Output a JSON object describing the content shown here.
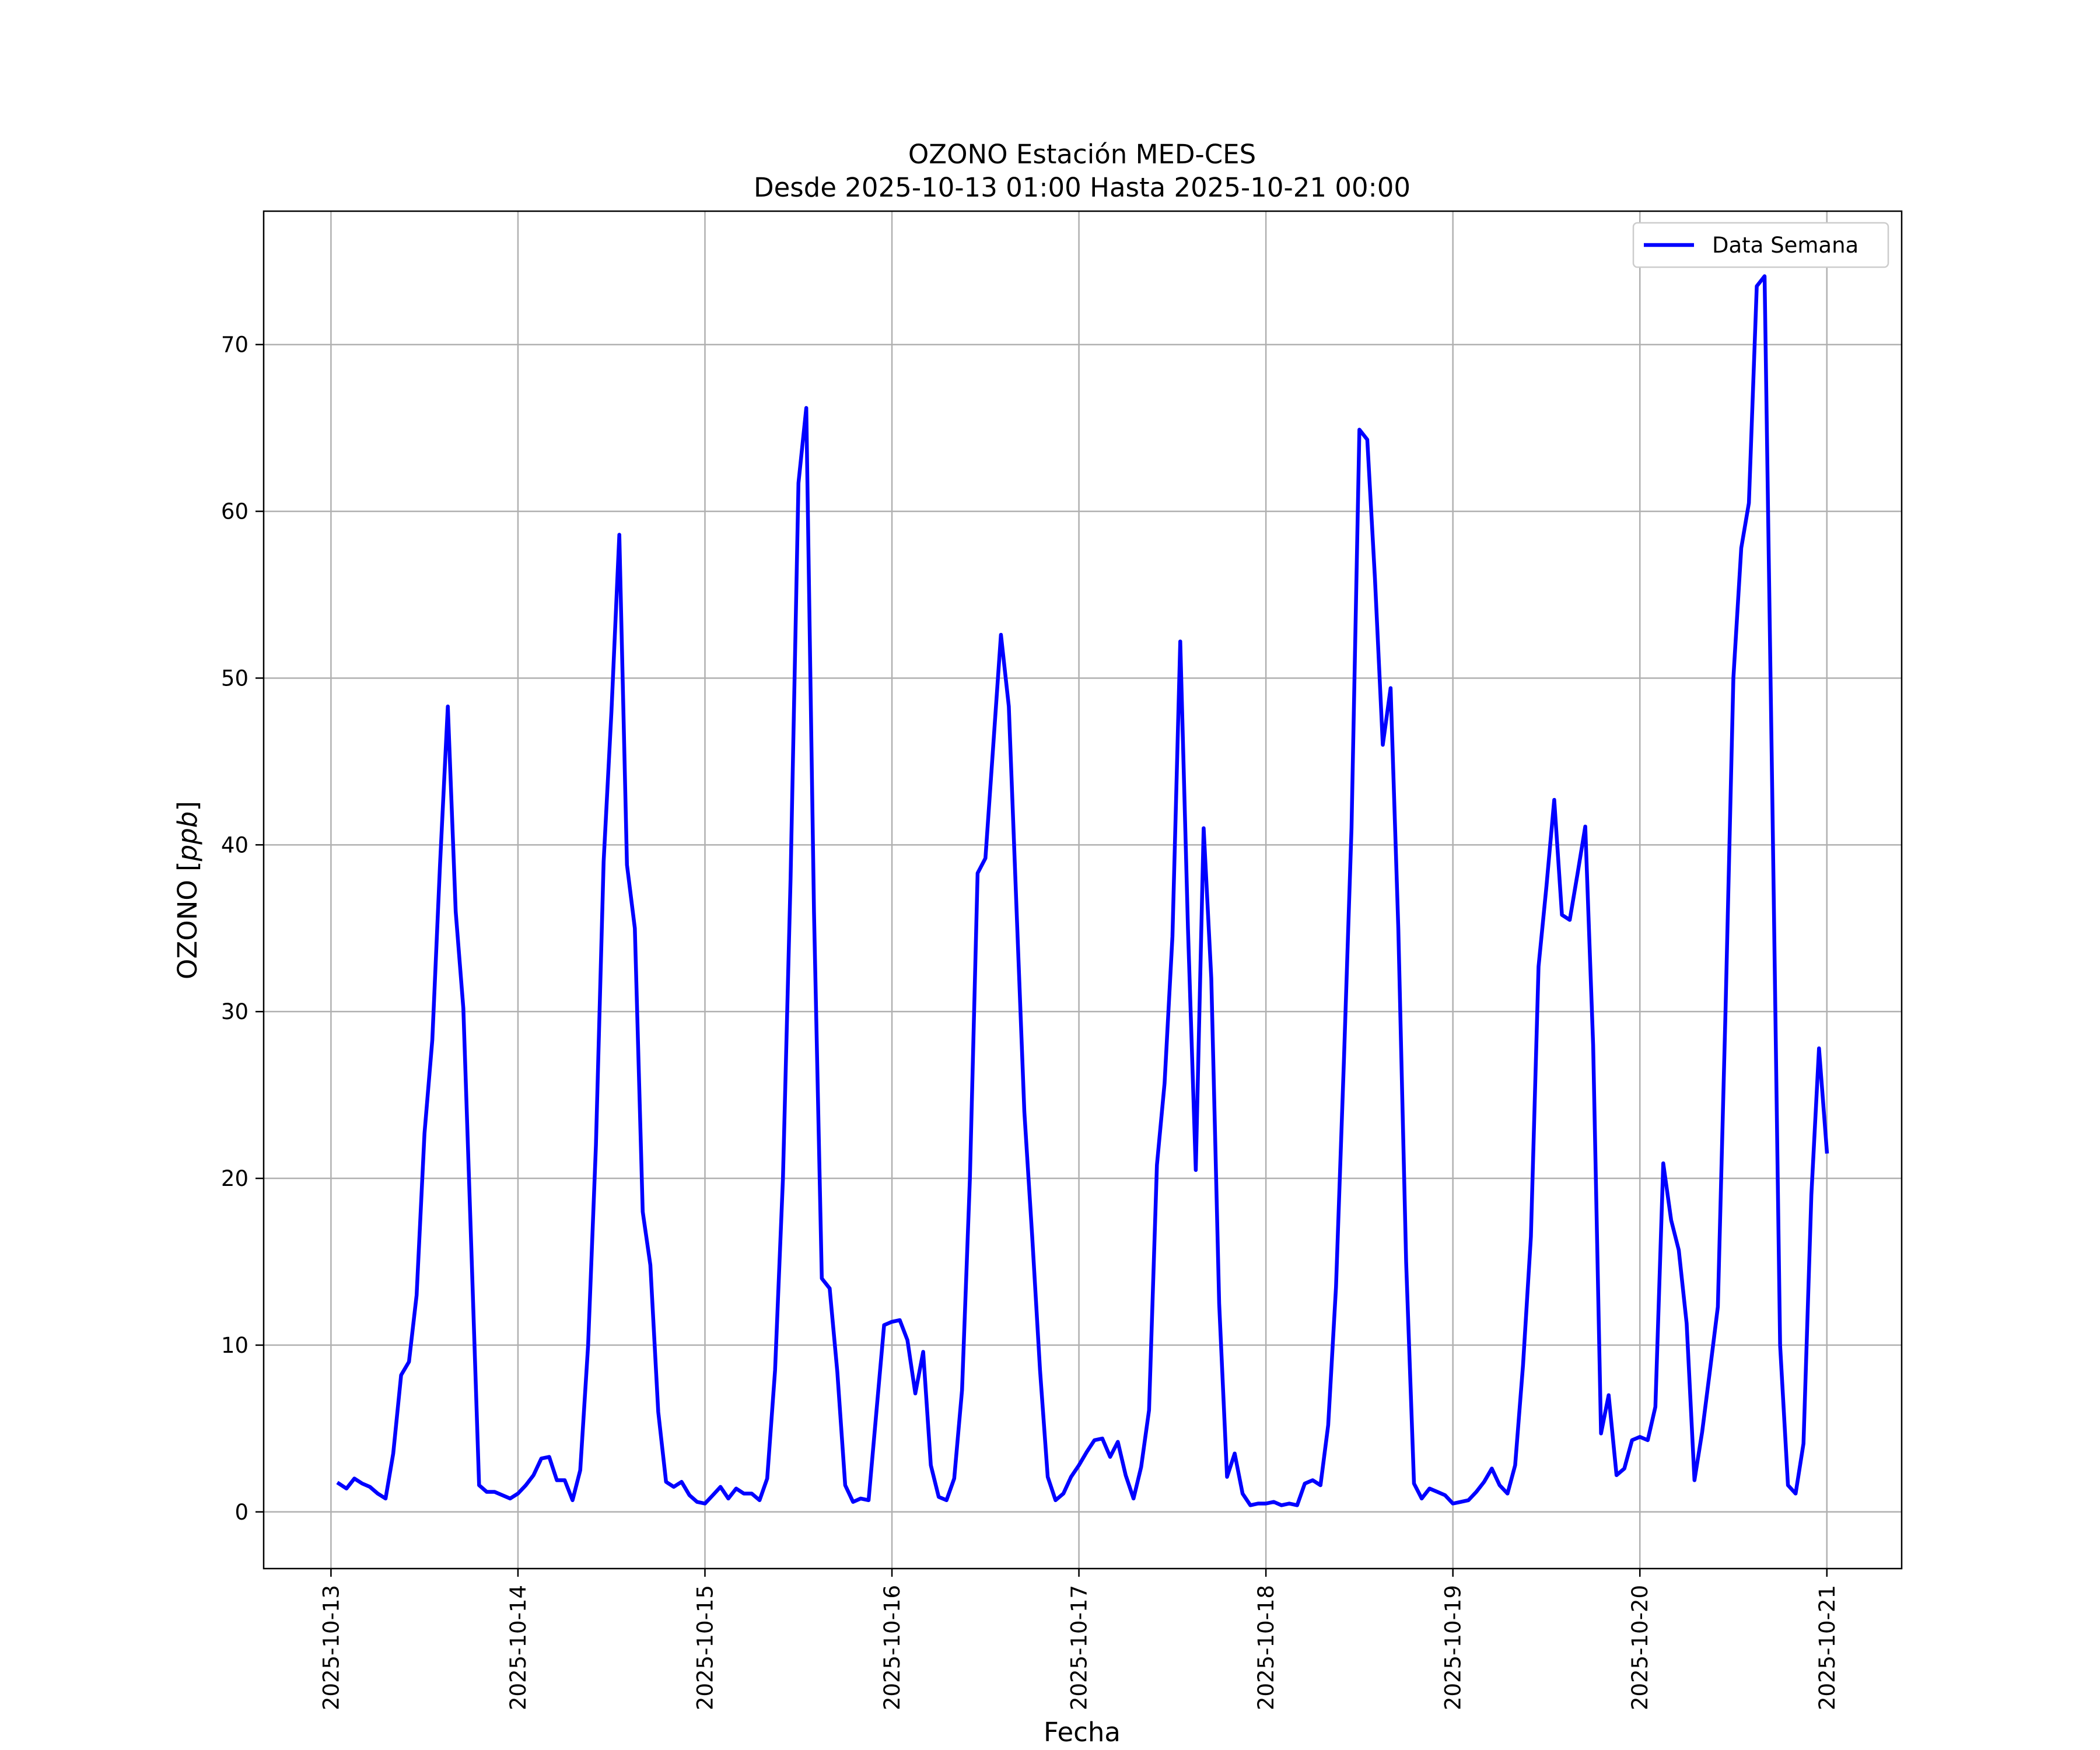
{
  "chart_data": {
    "type": "line",
    "title": "OZONO Estación MED-CES",
    "subtitle": "Desde 2025-10-13 01:00 Hasta 2025-10-21 00:00",
    "xlabel": "Fecha",
    "ylabel_main": "OZONO [",
    "ylabel_unit": "ppb",
    "ylabel_close": "]",
    "x_ticks": [
      "2025-10-13",
      "2025-10-14",
      "2025-10-15",
      "2025-10-16",
      "2025-10-17",
      "2025-10-18",
      "2025-10-19",
      "2025-10-20",
      "2025-10-21"
    ],
    "y_ticks": [
      "0",
      "10",
      "20",
      "30",
      "40",
      "50",
      "60",
      "70"
    ],
    "ylim": [
      -3.4,
      78
    ],
    "xlim": [
      -0.36,
      8.4
    ],
    "grid": true,
    "legend_position": "top-right",
    "line_color": "#0000ff",
    "series": [
      {
        "name": "Data Semana",
        "values": [
          [
            0.042,
            1.7
          ],
          [
            0.083,
            1.4
          ],
          [
            0.125,
            2.0
          ],
          [
            0.167,
            1.7
          ],
          [
            0.208,
            1.5
          ],
          [
            0.25,
            1.1
          ],
          [
            0.292,
            0.8
          ],
          [
            0.333,
            3.5
          ],
          [
            0.375,
            8.2
          ],
          [
            0.417,
            9.0
          ],
          [
            0.458,
            13.0
          ],
          [
            0.5,
            22.7
          ],
          [
            0.542,
            28.3
          ],
          [
            0.583,
            38.8
          ],
          [
            0.625,
            48.3
          ],
          [
            0.667,
            36.0
          ],
          [
            0.708,
            30.2
          ],
          [
            0.75,
            16.0
          ],
          [
            0.792,
            1.6
          ],
          [
            0.833,
            1.2
          ],
          [
            0.875,
            1.2
          ],
          [
            0.917,
            1.0
          ],
          [
            0.958,
            0.8
          ],
          [
            1.0,
            1.1
          ],
          [
            1.042,
            1.6
          ],
          [
            1.083,
            2.2
          ],
          [
            1.125,
            3.2
          ],
          [
            1.167,
            3.3
          ],
          [
            1.208,
            1.9
          ],
          [
            1.25,
            1.9
          ],
          [
            1.292,
            0.7
          ],
          [
            1.333,
            2.5
          ],
          [
            1.375,
            10.0
          ],
          [
            1.417,
            22.0
          ],
          [
            1.458,
            39.0
          ],
          [
            1.5,
            48.0
          ],
          [
            1.542,
            58.6
          ],
          [
            1.583,
            38.8
          ],
          [
            1.625,
            35.0
          ],
          [
            1.667,
            18.0
          ],
          [
            1.708,
            14.8
          ],
          [
            1.75,
            6.0
          ],
          [
            1.792,
            1.8
          ],
          [
            1.833,
            1.5
          ],
          [
            1.875,
            1.8
          ],
          [
            1.917,
            1.0
          ],
          [
            1.958,
            0.6
          ],
          [
            2.0,
            0.5
          ],
          [
            2.042,
            1.0
          ],
          [
            2.083,
            1.5
          ],
          [
            2.125,
            0.8
          ],
          [
            2.167,
            1.4
          ],
          [
            2.208,
            1.1
          ],
          [
            2.25,
            1.1
          ],
          [
            2.292,
            0.7
          ],
          [
            2.333,
            2.0
          ],
          [
            2.375,
            8.5
          ],
          [
            2.417,
            20.0
          ],
          [
            2.458,
            38.0
          ],
          [
            2.5,
            61.7
          ],
          [
            2.542,
            66.2
          ],
          [
            2.583,
            36.0
          ],
          [
            2.625,
            14.0
          ],
          [
            2.667,
            13.4
          ],
          [
            2.708,
            8.4
          ],
          [
            2.75,
            1.6
          ],
          [
            2.792,
            0.6
          ],
          [
            2.833,
            0.8
          ],
          [
            2.875,
            0.7
          ],
          [
            2.917,
            6.0
          ],
          [
            2.958,
            11.2
          ],
          [
            3.0,
            11.4
          ],
          [
            3.042,
            11.5
          ],
          [
            3.083,
            10.3
          ],
          [
            3.125,
            7.1
          ],
          [
            3.167,
            9.6
          ],
          [
            3.208,
            2.8
          ],
          [
            3.25,
            0.9
          ],
          [
            3.292,
            0.7
          ],
          [
            3.333,
            2.0
          ],
          [
            3.375,
            7.3
          ],
          [
            3.417,
            20.0
          ],
          [
            3.458,
            38.3
          ],
          [
            3.5,
            39.2
          ],
          [
            3.542,
            46.0
          ],
          [
            3.583,
            52.6
          ],
          [
            3.625,
            48.3
          ],
          [
            3.667,
            36.0
          ],
          [
            3.708,
            24.0
          ],
          [
            3.75,
            16.5
          ],
          [
            3.792,
            8.5
          ],
          [
            3.833,
            2.1
          ],
          [
            3.875,
            0.7
          ],
          [
            3.917,
            1.1
          ],
          [
            3.958,
            2.1
          ],
          [
            4.0,
            2.8
          ],
          [
            4.042,
            3.6
          ],
          [
            4.083,
            4.3
          ],
          [
            4.125,
            4.4
          ],
          [
            4.167,
            3.3
          ],
          [
            4.208,
            4.2
          ],
          [
            4.25,
            2.2
          ],
          [
            4.292,
            0.8
          ],
          [
            4.333,
            2.7
          ],
          [
            4.375,
            6.1
          ],
          [
            4.417,
            20.8
          ],
          [
            4.458,
            25.7
          ],
          [
            4.5,
            34.5
          ],
          [
            4.542,
            52.2
          ],
          [
            4.583,
            35.0
          ],
          [
            4.625,
            20.5
          ],
          [
            4.667,
            41.0
          ],
          [
            4.708,
            32.0
          ],
          [
            4.75,
            12.5
          ],
          [
            4.792,
            2.1
          ],
          [
            4.833,
            3.5
          ],
          [
            4.875,
            1.1
          ],
          [
            4.917,
            0.4
          ],
          [
            4.958,
            0.5
          ],
          [
            5.0,
            0.5
          ],
          [
            5.042,
            0.6
          ],
          [
            5.083,
            0.4
          ],
          [
            5.125,
            0.5
          ],
          [
            5.167,
            0.4
          ],
          [
            5.208,
            1.7
          ],
          [
            5.25,
            1.9
          ],
          [
            5.292,
            1.6
          ],
          [
            5.333,
            5.2
          ],
          [
            5.375,
            13.5
          ],
          [
            5.417,
            27.0
          ],
          [
            5.458,
            41.0
          ],
          [
            5.5,
            64.9
          ],
          [
            5.542,
            64.3
          ],
          [
            5.583,
            56.0
          ],
          [
            5.625,
            46.0
          ],
          [
            5.667,
            49.4
          ],
          [
            5.708,
            35.0
          ],
          [
            5.75,
            15.0
          ],
          [
            5.792,
            1.7
          ],
          [
            5.833,
            0.8
          ],
          [
            5.875,
            1.4
          ],
          [
            5.917,
            1.2
          ],
          [
            5.958,
            1.0
          ],
          [
            6.0,
            0.5
          ],
          [
            6.042,
            0.6
          ],
          [
            6.083,
            0.7
          ],
          [
            6.125,
            1.2
          ],
          [
            6.167,
            1.8
          ],
          [
            6.208,
            2.6
          ],
          [
            6.25,
            1.6
          ],
          [
            6.292,
            1.1
          ],
          [
            6.333,
            2.8
          ],
          [
            6.375,
            8.8
          ],
          [
            6.417,
            16.5
          ],
          [
            6.458,
            32.7
          ],
          [
            6.5,
            37.5
          ],
          [
            6.542,
            42.7
          ],
          [
            6.583,
            35.8
          ],
          [
            6.625,
            35.5
          ],
          [
            6.667,
            38.3
          ],
          [
            6.708,
            41.1
          ],
          [
            6.75,
            28.0
          ],
          [
            6.792,
            4.7
          ],
          [
            6.833,
            7.0
          ],
          [
            6.875,
            2.2
          ],
          [
            6.917,
            2.6
          ],
          [
            6.958,
            4.3
          ],
          [
            7.0,
            4.5
          ],
          [
            7.042,
            4.3
          ],
          [
            7.083,
            6.3
          ],
          [
            7.125,
            20.9
          ],
          [
            7.167,
            17.5
          ],
          [
            7.208,
            15.7
          ],
          [
            7.25,
            11.3
          ],
          [
            7.292,
            1.9
          ],
          [
            7.333,
            4.8
          ],
          [
            7.375,
            8.5
          ],
          [
            7.417,
            12.3
          ],
          [
            7.458,
            30.0
          ],
          [
            7.5,
            50.0
          ],
          [
            7.542,
            57.8
          ],
          [
            7.583,
            60.5
          ],
          [
            7.625,
            73.5
          ],
          [
            7.667,
            74.1
          ],
          [
            7.708,
            43.0
          ],
          [
            7.75,
            10.0
          ],
          [
            7.792,
            1.6
          ],
          [
            7.833,
            1.1
          ],
          [
            7.875,
            4.1
          ],
          [
            7.917,
            19.0
          ],
          [
            7.958,
            27.8
          ],
          [
            8.0,
            21.6
          ]
        ]
      }
    ]
  }
}
